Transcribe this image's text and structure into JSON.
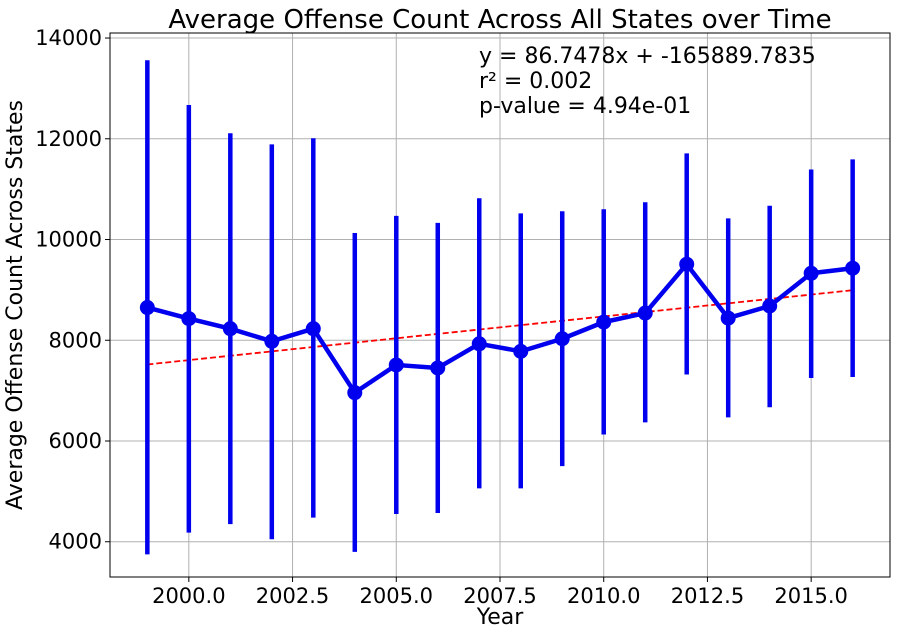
{
  "chart_data": {
    "type": "line",
    "title": "Average Offense Count Across All States over Time",
    "xlabel": "Year",
    "ylabel": "Average Offense Count Across States",
    "xlim": [
      1998.1,
      2016.9
    ],
    "ylim": [
      3300,
      14100
    ],
    "grid": true,
    "x_ticks": [
      2000.0,
      2002.5,
      2005.0,
      2007.5,
      2010.0,
      2012.5,
      2015.0
    ],
    "x_tick_labels": [
      "2000.0",
      "2002.5",
      "2005.0",
      "2007.5",
      "2010.0",
      "2012.5",
      "2015.0"
    ],
    "y_ticks": [
      4000,
      6000,
      8000,
      10000,
      12000,
      14000
    ],
    "y_tick_labels": [
      "4000",
      "6000",
      "8000",
      "10000",
      "12000",
      "14000"
    ],
    "series": [
      {
        "color": "#0000ee",
        "x": [
          1999,
          2000,
          2001,
          2002,
          2003,
          2004,
          2005,
          2006,
          2007,
          2008,
          2009,
          2010,
          2011,
          2012,
          2013,
          2014,
          2015,
          2016
        ],
        "values": [
          8650,
          8430,
          8230,
          7980,
          8230,
          6960,
          7510,
          7450,
          7930,
          7780,
          8030,
          8360,
          8540,
          9510,
          8440,
          8680,
          9330,
          9430
        ],
        "error_low": [
          3750,
          4180,
          4350,
          4050,
          4480,
          3800,
          4550,
          4570,
          5060,
          5060,
          5500,
          6130,
          6370,
          7320,
          6470,
          6670,
          7250,
          7270
        ],
        "error_high": [
          13560,
          12670,
          12110,
          11890,
          12010,
          10130,
          10470,
          10330,
          10820,
          10520,
          10560,
          10600,
          10740,
          11710,
          10420,
          10670,
          11390,
          11590
        ]
      }
    ],
    "trendline": {
      "color": "#ff0000",
      "slope": 86.7478,
      "intercept": -165889.7835,
      "x_start": 1999,
      "x_end": 2016
    },
    "annotations": [
      "y = 86.7478x + -165889.7835",
      "r² = 0.002",
      "p-value = 4.94e-01"
    ]
  }
}
